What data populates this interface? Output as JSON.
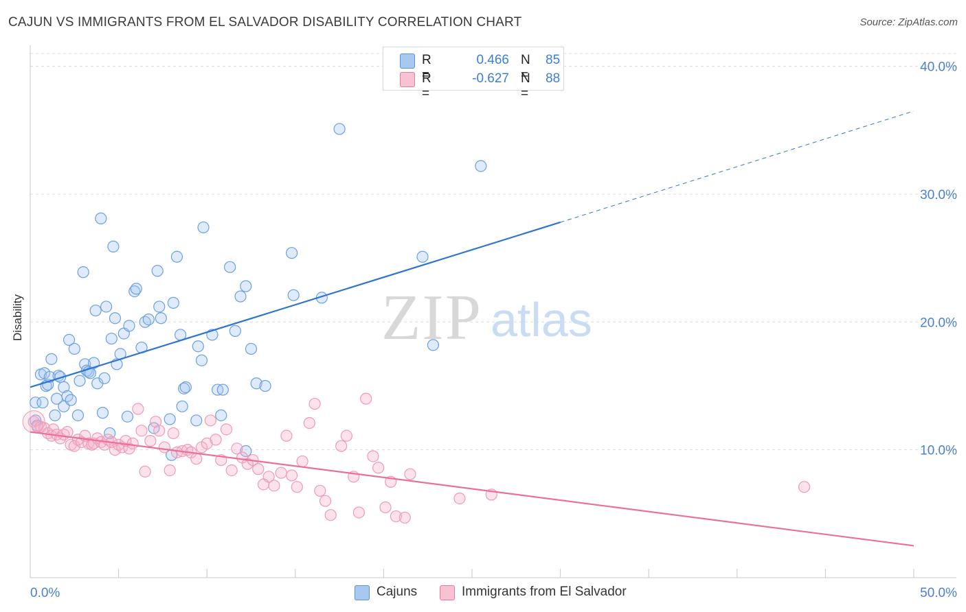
{
  "title": "CAJUN VS IMMIGRANTS FROM EL SALVADOR DISABILITY CORRELATION CHART",
  "source": "Source: ZipAtlas.com",
  "watermark": {
    "zip": "ZIP",
    "atlas": "atlas"
  },
  "legend": {
    "r_label": "R =",
    "n_label": "N =",
    "rows": [
      {
        "r": "0.466",
        "n": "85",
        "color": "#a7c8ef",
        "border": "#5b8fd6"
      },
      {
        "r": "-0.627",
        "n": "88",
        "color": "#f8c2d2",
        "border": "#e47a9c"
      }
    ]
  },
  "colors": {
    "cajun": "#6ea3e6",
    "elsalvador": "#f09ab6",
    "cajun_line": "#2e74d1",
    "elsalvador_line": "#e8709a",
    "axis_text": "#4a80d1"
  },
  "chart_data": {
    "type": "scatter",
    "title": "CAJUN VS IMMIGRANTS FROM EL SALVADOR DISABILITY CORRELATION CHART",
    "xlabel": "",
    "ylabel": "Disability",
    "xlim": [
      0,
      50
    ],
    "ylim": [
      0,
      41
    ],
    "x_tick_labels": [
      "0.0%",
      "50.0%"
    ],
    "y_ticks": [
      10,
      20,
      30,
      40
    ],
    "y_tick_labels": [
      "10.0%",
      "20.0%",
      "30.0%",
      "40.0%"
    ],
    "grid": true,
    "legend_position": "top-center",
    "series": [
      {
        "name": "Cajuns",
        "r": 0.466,
        "n": 85,
        "trend": {
          "x0": 0,
          "y0": 14.9,
          "x1": 30,
          "y1": 27.8,
          "dashed_to_x": 50,
          "dashed_to_y": 36.5
        },
        "points": [
          [
            0.3,
            13.7
          ],
          [
            0.3,
            12.3
          ],
          [
            0.4,
            11.9
          ],
          [
            0.6,
            15.9
          ],
          [
            0.7,
            13.7
          ],
          [
            0.8,
            16.0
          ],
          [
            0.9,
            15.0
          ],
          [
            1.0,
            15.1
          ],
          [
            1.1,
            15.7
          ],
          [
            1.2,
            17.1
          ],
          [
            1.4,
            12.7
          ],
          [
            1.5,
            14.0
          ],
          [
            1.6,
            15.8
          ],
          [
            1.7,
            15.7
          ],
          [
            1.9,
            13.4
          ],
          [
            1.9,
            14.9
          ],
          [
            2.1,
            14.2
          ],
          [
            2.2,
            18.6
          ],
          [
            2.3,
            13.9
          ],
          [
            2.5,
            17.9
          ],
          [
            2.7,
            12.7
          ],
          [
            2.8,
            15.4
          ],
          [
            3.0,
            23.9
          ],
          [
            3.1,
            16.7
          ],
          [
            3.2,
            16.2
          ],
          [
            3.3,
            16.1
          ],
          [
            3.4,
            16.0
          ],
          [
            3.6,
            16.8
          ],
          [
            3.7,
            20.9
          ],
          [
            3.8,
            15.2
          ],
          [
            4.0,
            28.1
          ],
          [
            4.1,
            12.9
          ],
          [
            4.2,
            15.6
          ],
          [
            4.3,
            21.2
          ],
          [
            4.5,
            11.3
          ],
          [
            4.6,
            18.7
          ],
          [
            4.7,
            25.9
          ],
          [
            4.8,
            20.3
          ],
          [
            4.9,
            16.7
          ],
          [
            5.1,
            17.5
          ],
          [
            5.3,
            19.1
          ],
          [
            5.5,
            12.6
          ],
          [
            5.6,
            19.7
          ],
          [
            5.9,
            22.4
          ],
          [
            6.0,
            22.6
          ],
          [
            6.3,
            18.0
          ],
          [
            6.5,
            20.0
          ],
          [
            6.7,
            20.2
          ],
          [
            7.0,
            11.7
          ],
          [
            7.2,
            24.0
          ],
          [
            7.3,
            21.2
          ],
          [
            7.4,
            20.3
          ],
          [
            7.9,
            12.4
          ],
          [
            8.0,
            9.6
          ],
          [
            8.1,
            21.5
          ],
          [
            8.3,
            25.1
          ],
          [
            8.5,
            19.0
          ],
          [
            8.6,
            13.4
          ],
          [
            8.7,
            14.8
          ],
          [
            8.8,
            14.9
          ],
          [
            9.4,
            12.3
          ],
          [
            9.5,
            18.1
          ],
          [
            9.7,
            17.0
          ],
          [
            9.8,
            27.4
          ],
          [
            10.3,
            19.0
          ],
          [
            10.6,
            14.7
          ],
          [
            10.8,
            12.7
          ],
          [
            10.9,
            14.7
          ],
          [
            11.3,
            24.3
          ],
          [
            11.6,
            19.3
          ],
          [
            11.9,
            22.0
          ],
          [
            12.2,
            22.8
          ],
          [
            12.2,
            9.9
          ],
          [
            12.5,
            17.9
          ],
          [
            12.8,
            15.2
          ],
          [
            13.3,
            15.0
          ],
          [
            14.8,
            25.4
          ],
          [
            14.9,
            22.1
          ],
          [
            16.5,
            21.9
          ],
          [
            17.5,
            35.1
          ],
          [
            22.2,
            25.1
          ],
          [
            22.8,
            18.2
          ],
          [
            25.5,
            32.2
          ]
        ]
      },
      {
        "name": "Immigrants from El Salvador",
        "r": -0.627,
        "n": 88,
        "trend": {
          "x0": 0,
          "y0": 11.4,
          "x1": 50,
          "y1": 2.5
        },
        "points": [
          [
            0.2,
            12.2
          ],
          [
            0.4,
            11.8
          ],
          [
            0.6,
            11.8
          ],
          [
            0.8,
            11.7
          ],
          [
            1.0,
            11.3
          ],
          [
            1.2,
            11.1
          ],
          [
            1.3,
            11.6
          ],
          [
            1.5,
            11.2
          ],
          [
            1.7,
            10.9
          ],
          [
            1.9,
            11.2
          ],
          [
            2.1,
            11.4
          ],
          [
            2.3,
            10.4
          ],
          [
            2.5,
            10.3
          ],
          [
            2.7,
            10.8
          ],
          [
            2.9,
            10.6
          ],
          [
            3.1,
            11.1
          ],
          [
            3.3,
            10.5
          ],
          [
            3.5,
            10.4
          ],
          [
            3.6,
            10.5
          ],
          [
            3.8,
            10.9
          ],
          [
            4.0,
            10.6
          ],
          [
            4.2,
            10.4
          ],
          [
            4.4,
            10.8
          ],
          [
            4.6,
            10.6
          ],
          [
            4.8,
            10.0
          ],
          [
            5.0,
            10.4
          ],
          [
            5.2,
            10.2
          ],
          [
            5.4,
            10.7
          ],
          [
            5.6,
            10.1
          ],
          [
            5.8,
            10.5
          ],
          [
            6.1,
            13.2
          ],
          [
            6.3,
            11.5
          ],
          [
            6.5,
            8.3
          ],
          [
            6.8,
            10.7
          ],
          [
            7.1,
            12.2
          ],
          [
            7.3,
            11.5
          ],
          [
            7.6,
            10.2
          ],
          [
            7.9,
            8.4
          ],
          [
            8.1,
            11.3
          ],
          [
            8.3,
            9.8
          ],
          [
            8.6,
            9.9
          ],
          [
            8.9,
            10.0
          ],
          [
            9.1,
            9.8
          ],
          [
            9.4,
            9.3
          ],
          [
            9.7,
            10.2
          ],
          [
            10.0,
            10.5
          ],
          [
            10.2,
            12.3
          ],
          [
            10.5,
            10.8
          ],
          [
            10.8,
            9.2
          ],
          [
            11.1,
            11.6
          ],
          [
            11.4,
            8.4
          ],
          [
            11.7,
            10.1
          ],
          [
            12.0,
            9.4
          ],
          [
            12.3,
            8.9
          ],
          [
            12.6,
            9.2
          ],
          [
            12.9,
            8.5
          ],
          [
            13.2,
            7.3
          ],
          [
            13.5,
            7.9
          ],
          [
            13.8,
            7.2
          ],
          [
            14.2,
            8.2
          ],
          [
            14.5,
            11.1
          ],
          [
            14.8,
            8.0
          ],
          [
            15.1,
            7.1
          ],
          [
            15.4,
            9.1
          ],
          [
            15.8,
            12.1
          ],
          [
            16.1,
            13.6
          ],
          [
            16.4,
            6.8
          ],
          [
            16.7,
            6.0
          ],
          [
            17.0,
            4.9
          ],
          [
            17.6,
            10.3
          ],
          [
            17.9,
            11.1
          ],
          [
            18.3,
            7.9
          ],
          [
            18.6,
            5.1
          ],
          [
            19.0,
            14.0
          ],
          [
            19.4,
            9.5
          ],
          [
            19.7,
            8.6
          ],
          [
            20.1,
            5.5
          ],
          [
            20.4,
            7.5
          ],
          [
            20.7,
            4.8
          ],
          [
            21.2,
            4.7
          ],
          [
            21.5,
            8.1
          ],
          [
            24.3,
            6.2
          ],
          [
            26.1,
            6.5
          ],
          [
            43.8,
            7.1
          ]
        ]
      }
    ]
  },
  "bottom_legend": [
    {
      "label": "Cajuns",
      "color": "#a7c8ef",
      "border": "#5b8fd6"
    },
    {
      "label": "Immigrants from El Salvador",
      "color": "#f8c2d2",
      "border": "#e47a9c"
    }
  ]
}
